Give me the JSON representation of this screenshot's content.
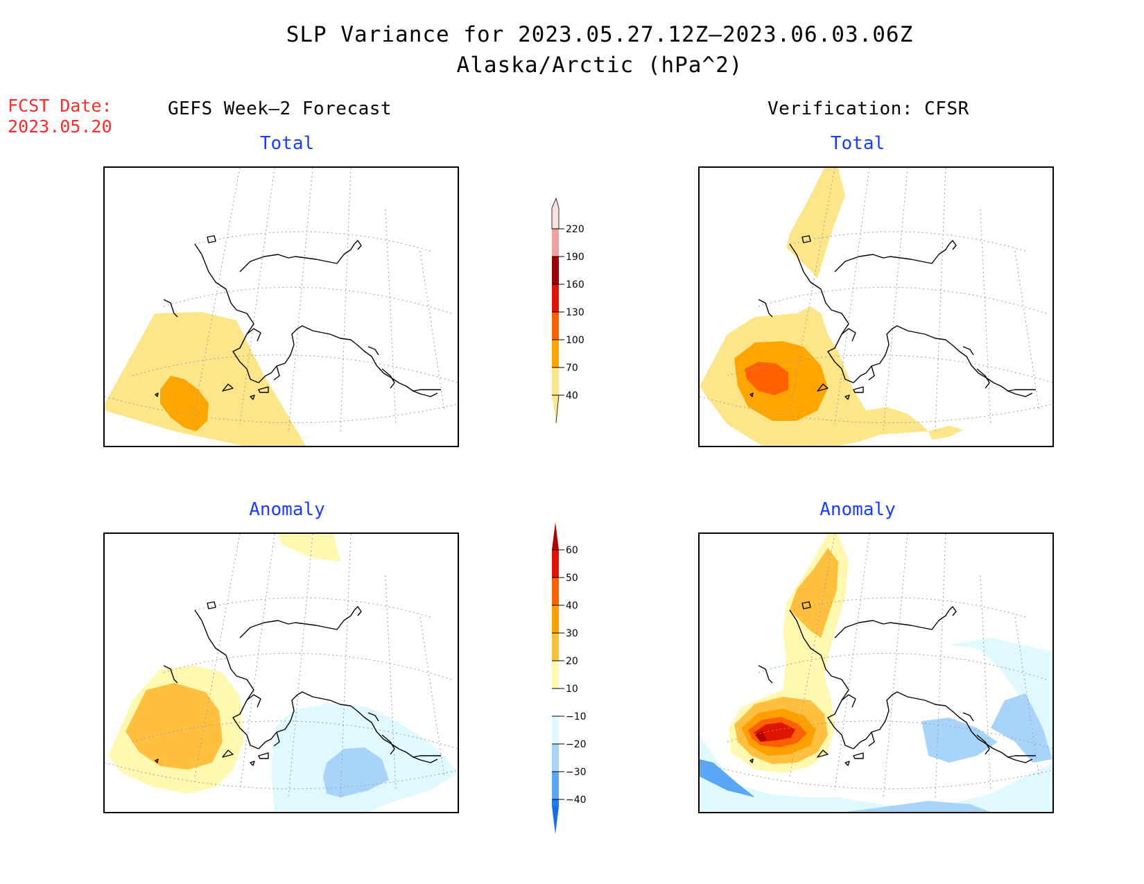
{
  "title": {
    "line1": "SLP Variance for 2023.05.27.12Z–2023.06.03.06Z",
    "line2": "Alaska/Arctic (hPa^2)"
  },
  "forecast_date": {
    "label": "FCST Date:",
    "value": "2023.05.20"
  },
  "columns": {
    "left_title": "GEFS Week–2 Forecast",
    "right_title": "Verification: CFSR"
  },
  "panels": {
    "top_left_label": "Total",
    "top_right_label": "Total",
    "bottom_left_label": "Anomaly",
    "bottom_right_label": "Anomaly"
  },
  "colorbars": {
    "total": {
      "ticks": [
        "40",
        "70",
        "100",
        "130",
        "160",
        "190",
        "220"
      ],
      "colors": [
        "#fde68a",
        "#ffa500",
        "#ff6000",
        "#e01500",
        "#a00000",
        "#f4a0a0",
        "#fbe0e0"
      ]
    },
    "anomaly": {
      "ticks": [
        "−40",
        "−30",
        "−20",
        "−10",
        "10",
        "20",
        "30",
        "40",
        "50",
        "60"
      ],
      "colors": [
        "#1a6ee0",
        "#1e7ef0",
        "#5aa8f5",
        "#a8d4fa",
        "#e0f8ff",
        "#ffffff",
        "#fff8b0",
        "#ffc040",
        "#ffa000",
        "#ff6000",
        "#e01500",
        "#b00000"
      ]
    }
  },
  "colors": {
    "title_red": "#ff2a2a",
    "subtitle_blue": "#1a3cff"
  }
}
